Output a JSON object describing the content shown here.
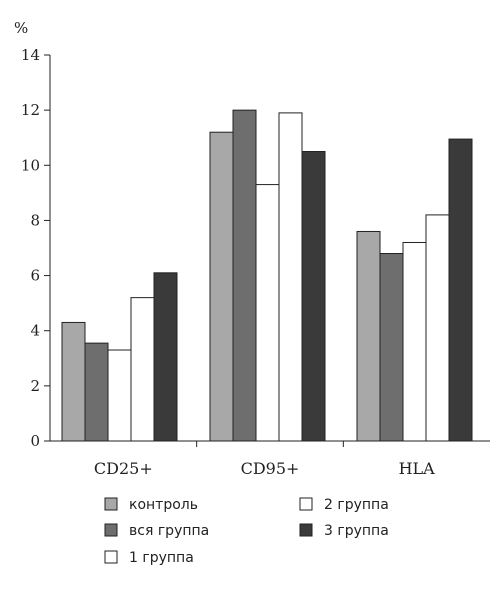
{
  "chart_data": {
    "type": "bar",
    "title": "",
    "xlabel": "",
    "ylabel": "%",
    "ylim": [
      0,
      14
    ],
    "yticks": [
      0,
      2,
      4,
      6,
      8,
      10,
      12,
      14
    ],
    "categories": [
      "CD25+",
      "CD95+",
      "HLA"
    ],
    "series": [
      {
        "name": "контроль",
        "color": "#a8a8a8",
        "values": [
          4.3,
          11.2,
          7.6
        ]
      },
      {
        "name": "вся группа",
        "color": "#6e6e6e",
        "values": [
          3.55,
          12.0,
          6.8
        ]
      },
      {
        "name": "1 группа",
        "color": "#ffffff",
        "values": [
          3.3,
          9.3,
          7.2
        ]
      },
      {
        "name": "2 группа",
        "color": "#ffffff",
        "values": [
          5.2,
          11.9,
          8.2
        ]
      },
      {
        "name": "3 группа",
        "color": "#3a3a3a",
        "values": [
          6.1,
          10.5,
          10.95
        ]
      }
    ],
    "grid": false,
    "legend_position": "bottom"
  }
}
